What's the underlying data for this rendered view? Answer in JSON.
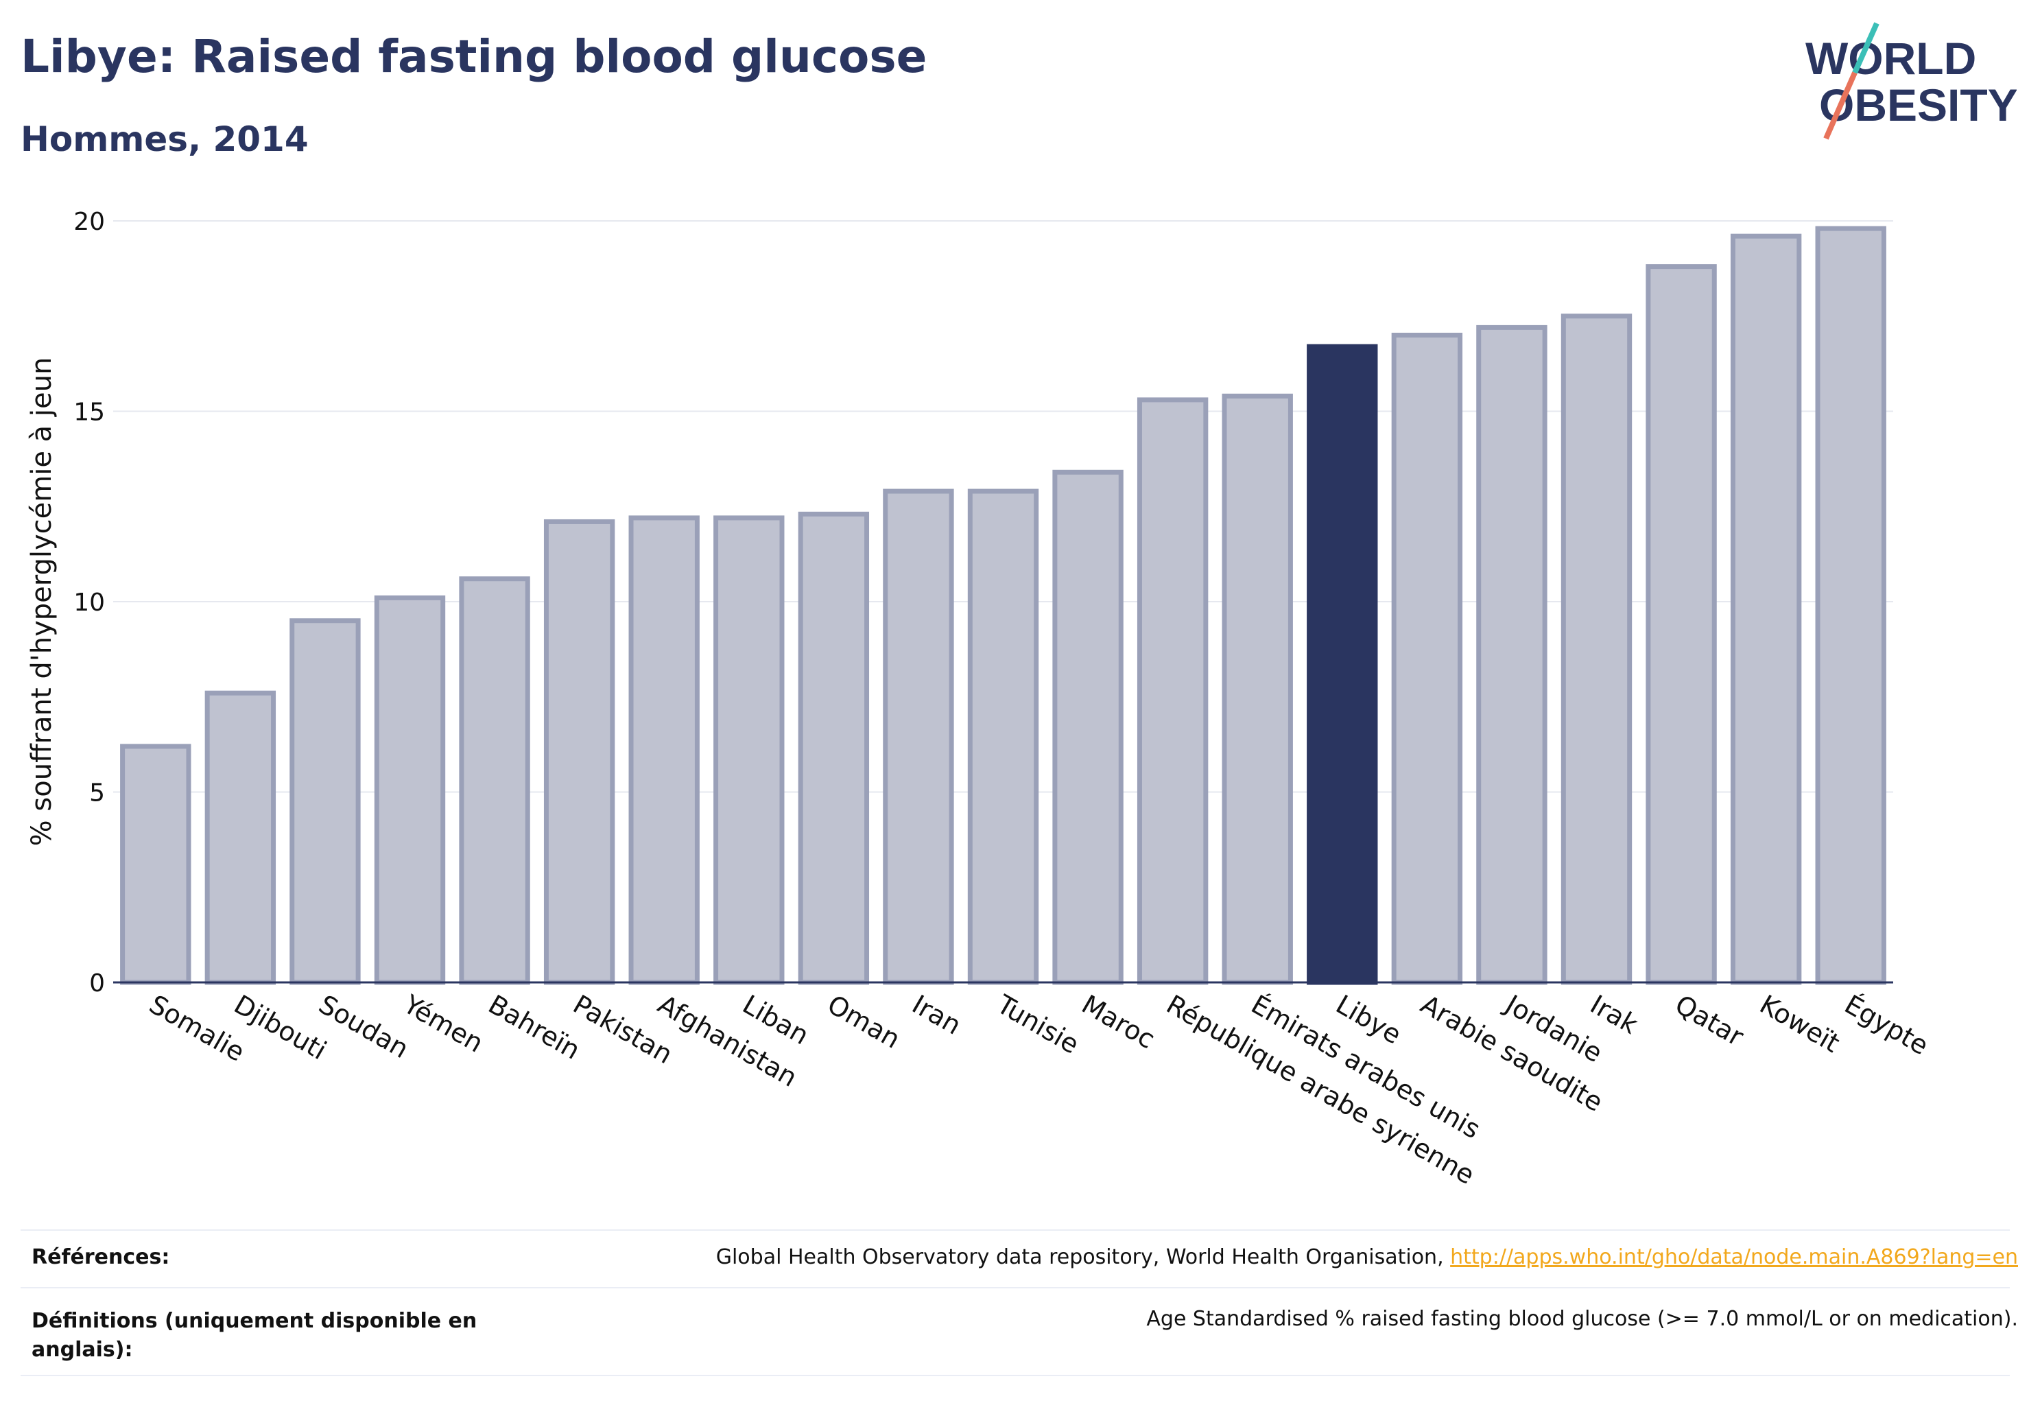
{
  "header": {
    "title": "Libye: Raised fasting blood glucose",
    "subtitle": "Hommes, 2014"
  },
  "logo": {
    "line1": "WORLD",
    "line2": "OBESITY",
    "icon": "world-obesity-logo"
  },
  "colors": {
    "accent": "#2a3560",
    "bar": "#bfc2d0",
    "bar_border": "#9aa0b8",
    "link": "#f2a81d",
    "logo_teal": "#3bbfb7",
    "logo_coral": "#e8735b"
  },
  "chart_data": {
    "type": "bar",
    "ylabel": "% souffrant d'hyperglycémie à jeun",
    "ylim": [
      0,
      20
    ],
    "yticks": [
      0,
      5,
      10,
      15,
      20
    ],
    "grid": true,
    "highlight": "Libye",
    "categories": [
      "Somalie",
      "Djibouti",
      "Soudan",
      "Yémen",
      "Bahreïn",
      "Pakistan",
      "Afghanistan",
      "Liban",
      "Oman",
      "Iran",
      "Tunisie",
      "Maroc",
      "République arabe syrienne",
      "Émirats arabes unis",
      "Libye",
      "Arabie saoudite",
      "Jordanie",
      "Irak",
      "Qatar",
      "Koweït",
      "Égypte"
    ],
    "values": [
      6.2,
      7.6,
      9.5,
      10.1,
      10.6,
      12.1,
      12.2,
      12.2,
      12.3,
      12.9,
      12.9,
      13.4,
      15.3,
      15.4,
      16.7,
      17.0,
      17.2,
      17.5,
      18.8,
      19.6,
      19.8
    ]
  },
  "footer": {
    "references_label": "Références:",
    "references_text": "Global Health Observatory data repository, World Health Organisation, ",
    "references_link": "http://apps.who.int/gho/data/node.main.A869?lang=en",
    "definitions_label_line1": "Définitions (uniquement disponible en",
    "definitions_label_line2": "anglais):",
    "definitions_text": "Age Standardised % raised fasting blood glucose (>= 7.0 mmol/L or on medication)."
  }
}
